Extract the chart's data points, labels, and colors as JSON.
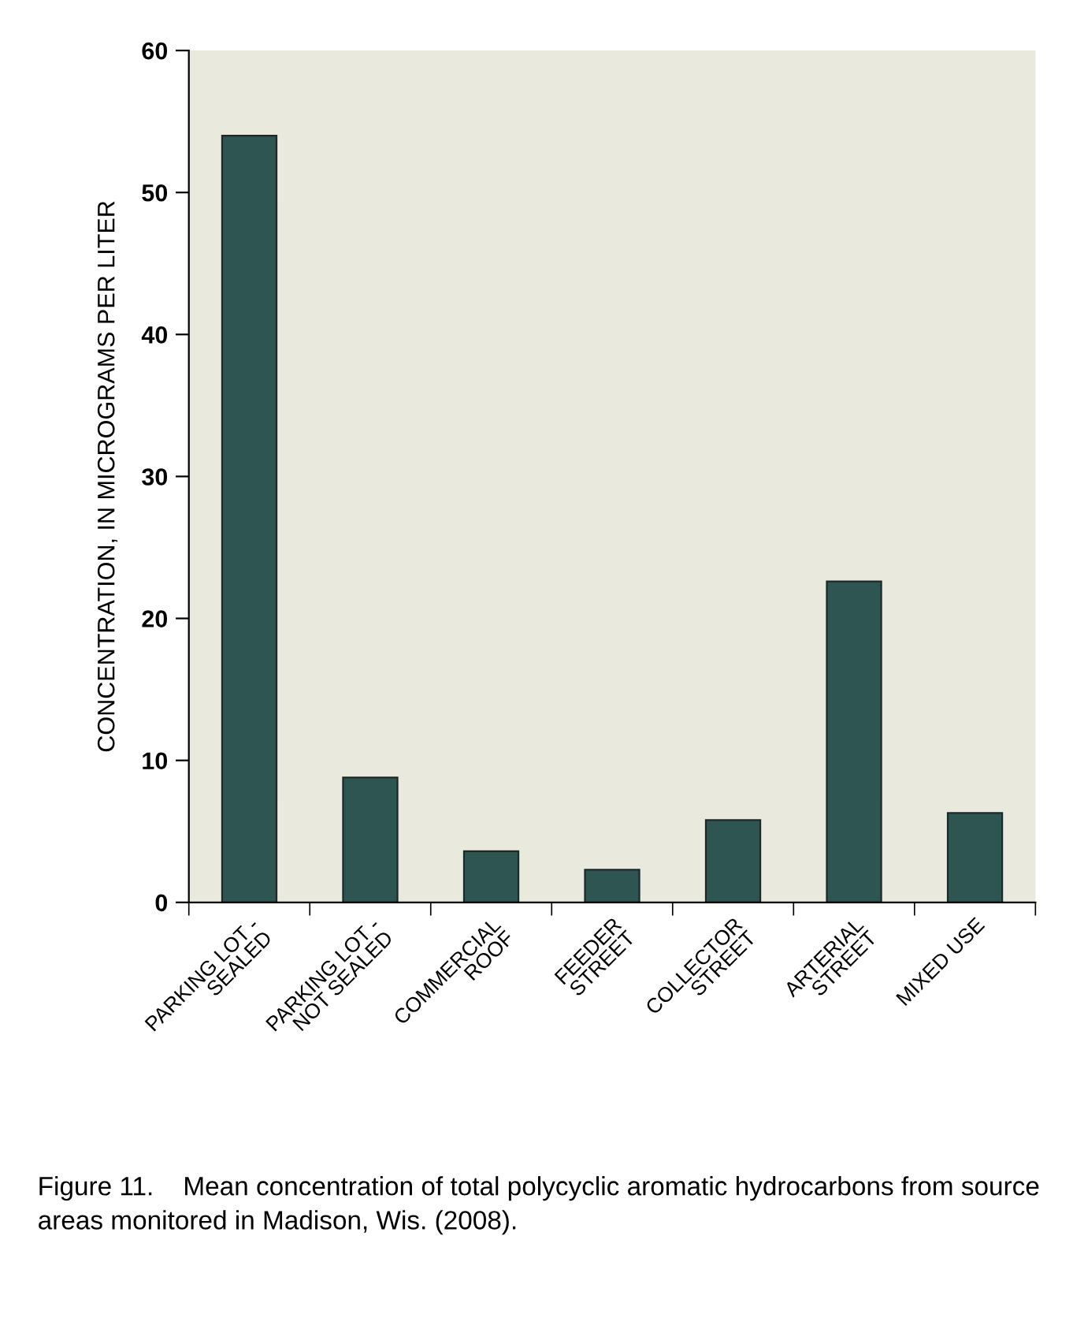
{
  "chart_data": {
    "type": "bar",
    "ylabel": "CONCENTRATION, IN MICROGRAMS PER LITER",
    "categories": [
      "PARKING LOT -\nSEALED",
      "PARKING LOT -\nNOT SEALED",
      "COMMERCIAL\nROOF",
      "FEEDER\nSTREET",
      "COLLECTOR\nSTREET",
      "ARTERIAL\nSTREET",
      "MIXED USE"
    ],
    "values": [
      54,
      8.8,
      3.6,
      2.3,
      5.8,
      22.6,
      6.3
    ],
    "color": "#2f5553",
    "ylim": [
      0,
      60
    ],
    "yticks": [
      0,
      10,
      20,
      30,
      40,
      50,
      60
    ],
    "grid": false,
    "annotations": [
      "Figure 11.    Mean concentration of total polycyclic aromatic hydrocarbons from source areas monitored in Madison, Wis. (2008)."
    ]
  }
}
